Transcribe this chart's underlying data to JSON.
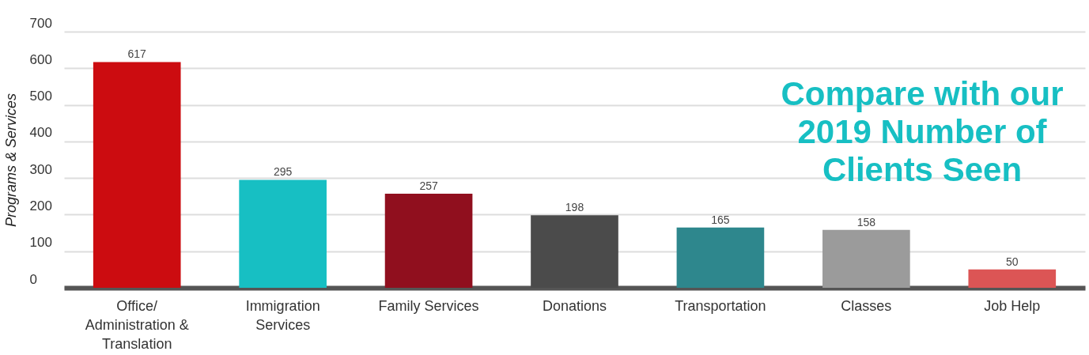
{
  "chart_data": {
    "type": "bar",
    "ylabel": "Programs & Services",
    "categories": [
      "Office/ Administration & Translation",
      "Immigration Services",
      "Family Services",
      "Donations",
      "Transportation",
      "Classes",
      "Job Help"
    ],
    "values": [
      617,
      295,
      257,
      198,
      165,
      158,
      50
    ],
    "colors": [
      "#cc0c10",
      "#17bfc3",
      "#900f1e",
      "#4b4b4b",
      "#2e878d",
      "#9b9b9b",
      "#dc5555"
    ],
    "ylim": [
      0,
      700
    ],
    "yticks": [
      0,
      100,
      200,
      300,
      400,
      500,
      600,
      700
    ],
    "grid": "y",
    "data_labels": true,
    "annotations": [
      "Compare with our 2019  Number of Clients Seen"
    ]
  }
}
